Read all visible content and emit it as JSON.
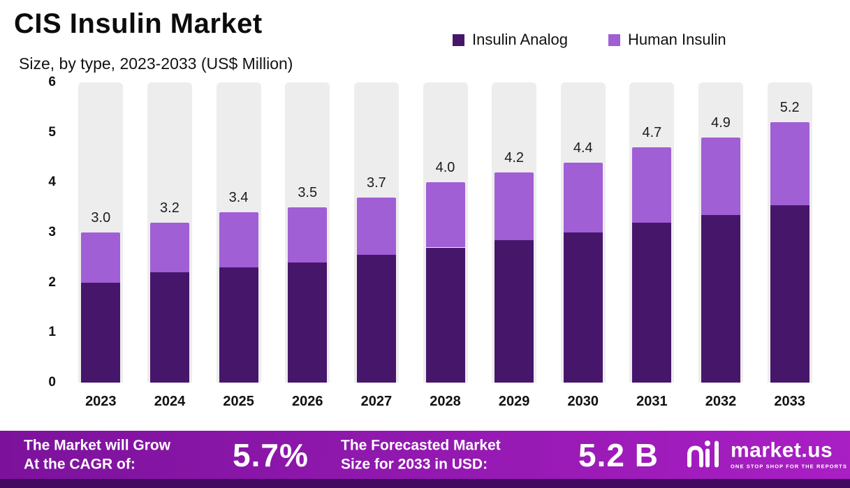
{
  "title": "CIS Insulin Market",
  "subtitle": "Size, by type, 2023-2033 (US$ Million)",
  "legend": [
    {
      "label": "Insulin Analog",
      "color": "#46166b"
    },
    {
      "label": "Human Insulin",
      "color": "#a05fd5"
    }
  ],
  "chart_data": {
    "type": "bar",
    "stacked": true,
    "title": "CIS Insulin Market Size, by type, 2023-2033 (US$ Million)",
    "categories": [
      "2023",
      "2024",
      "2025",
      "2026",
      "2027",
      "2028",
      "2029",
      "2030",
      "2031",
      "2032",
      "2033"
    ],
    "series": [
      {
        "name": "Insulin Analog",
        "color": "#46166b",
        "values": [
          2.0,
          2.2,
          2.3,
          2.4,
          2.55,
          2.7,
          2.85,
          3.0,
          3.2,
          3.35,
          3.55
        ]
      },
      {
        "name": "Human Insulin",
        "color": "#a05fd5",
        "values": [
          1.0,
          1.0,
          1.1,
          1.1,
          1.15,
          1.3,
          1.35,
          1.4,
          1.5,
          1.55,
          1.65
        ]
      }
    ],
    "totals_labels": [
      "3.0",
      "3.2",
      "3.4",
      "3.5",
      "3.7",
      "4.0",
      "4.2",
      "4.4",
      "4.7",
      "4.9",
      "5.2"
    ],
    "ylim": [
      0,
      6
    ],
    "yticks": [
      "0",
      "1",
      "2",
      "3",
      "4",
      "5",
      "6"
    ],
    "legend_position": "top-right",
    "grid": false
  },
  "colors": {
    "track": "#ededed",
    "banner_gradient_start": "#7c129c",
    "banner_gradient_end": "#a91fc4",
    "footer_strip": "#43085f"
  },
  "footer": {
    "left_line1": "The Market will Grow",
    "left_line2": "At the CAGR of:",
    "cagr": "5.7%",
    "mid_line1": "The Forecasted Market",
    "mid_line2": "Size for 2033 in USD:",
    "forecast": "5.2 B",
    "brand": "market.us",
    "tagline": "ONE STOP SHOP FOR THE REPORTS"
  }
}
